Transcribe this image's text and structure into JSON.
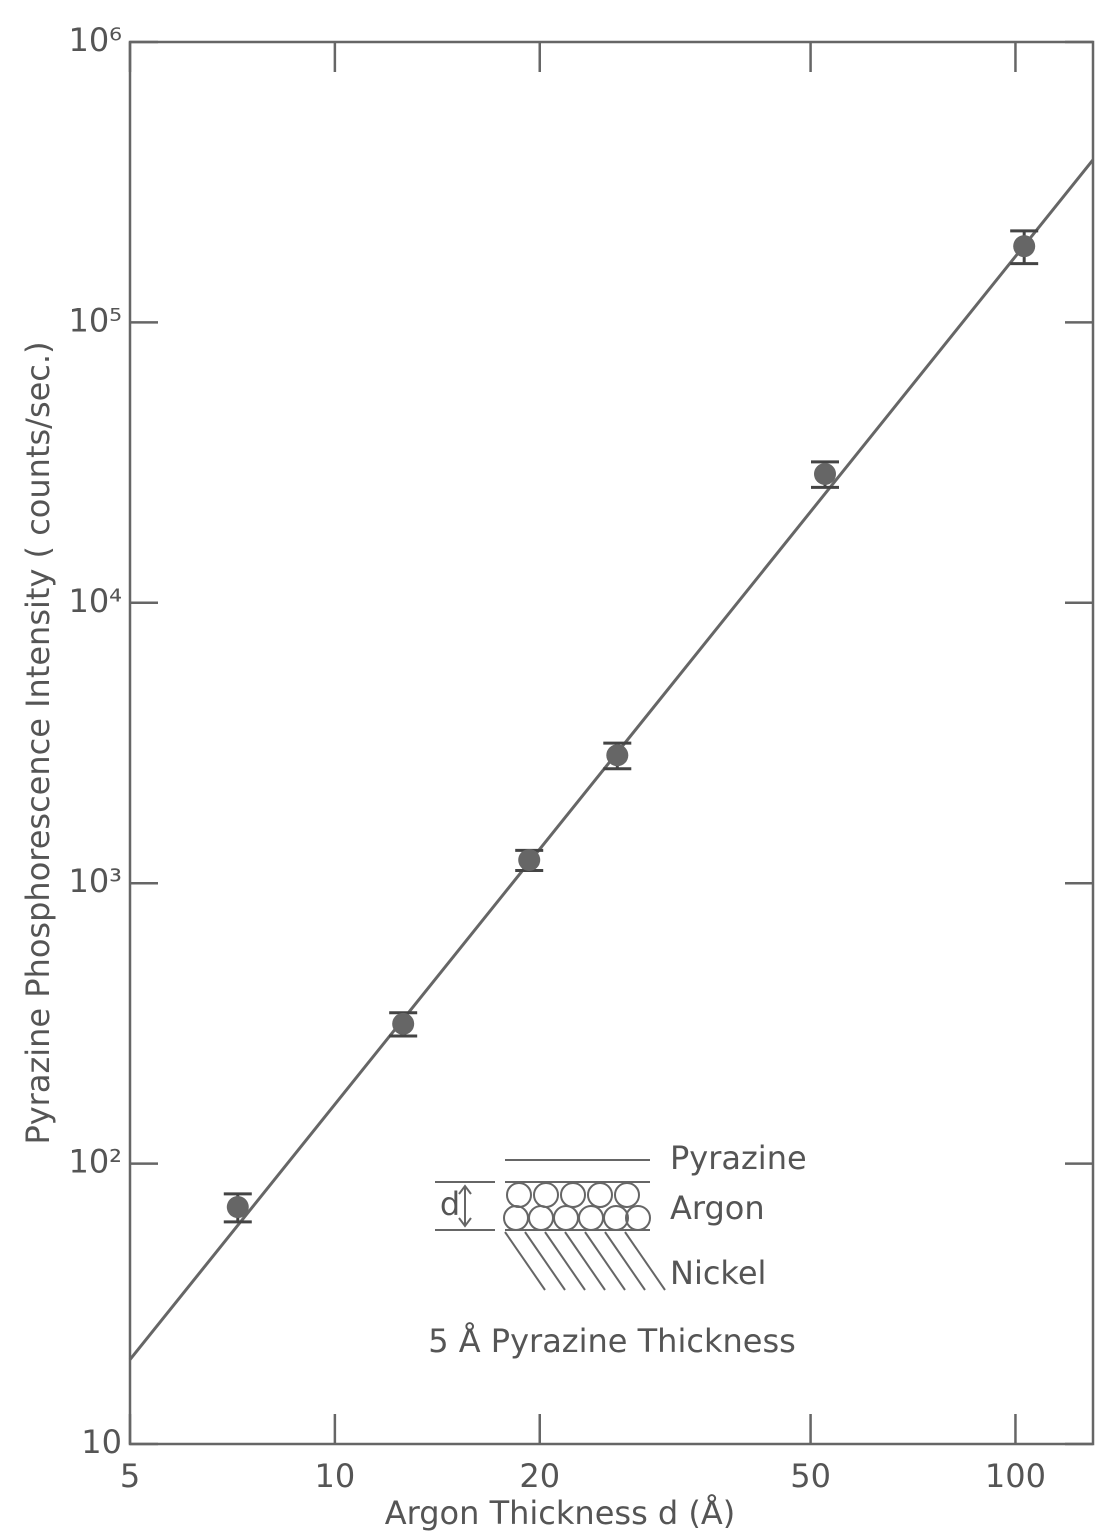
{
  "chart_data": {
    "type": "scatter",
    "x_label": "Argon Thickness  d (Å)",
    "y_label": "Pyrazine Phosphorescence Intensity ( counts/sec.)",
    "xscale": "log",
    "yscale": "log",
    "xlim": [
      5,
      130
    ],
    "ylim": [
      10,
      1000000
    ],
    "xticks": [
      5,
      10,
      20,
      50,
      100
    ],
    "yticks": [
      10,
      {
        "value": 100,
        "label": "10²"
      },
      {
        "value": 1000,
        "label": "10³"
      },
      {
        "value": 10000,
        "label": "10⁴"
      },
      {
        "value": 100000,
        "label": "10⁵"
      },
      {
        "value": 1000000,
        "label": "10⁶"
      }
    ],
    "color": "#666666",
    "x": [
      7.2,
      12.6,
      19.3,
      26,
      52.5,
      103
    ],
    "values": [
      70,
      315,
      1210,
      2860,
      28800,
      187000
    ],
    "errors": [
      8,
      30,
      100,
      300,
      3000,
      25000
    ],
    "fit": {
      "x": [
        5,
        130
      ],
      "y": [
        20,
        380000
      ]
    },
    "annotations": {
      "pyrazine": "Pyrazine",
      "argon": "Argon",
      "nickel": "Nickel",
      "d": "d",
      "caption": "5 Å Pyrazine Thickness"
    }
  }
}
